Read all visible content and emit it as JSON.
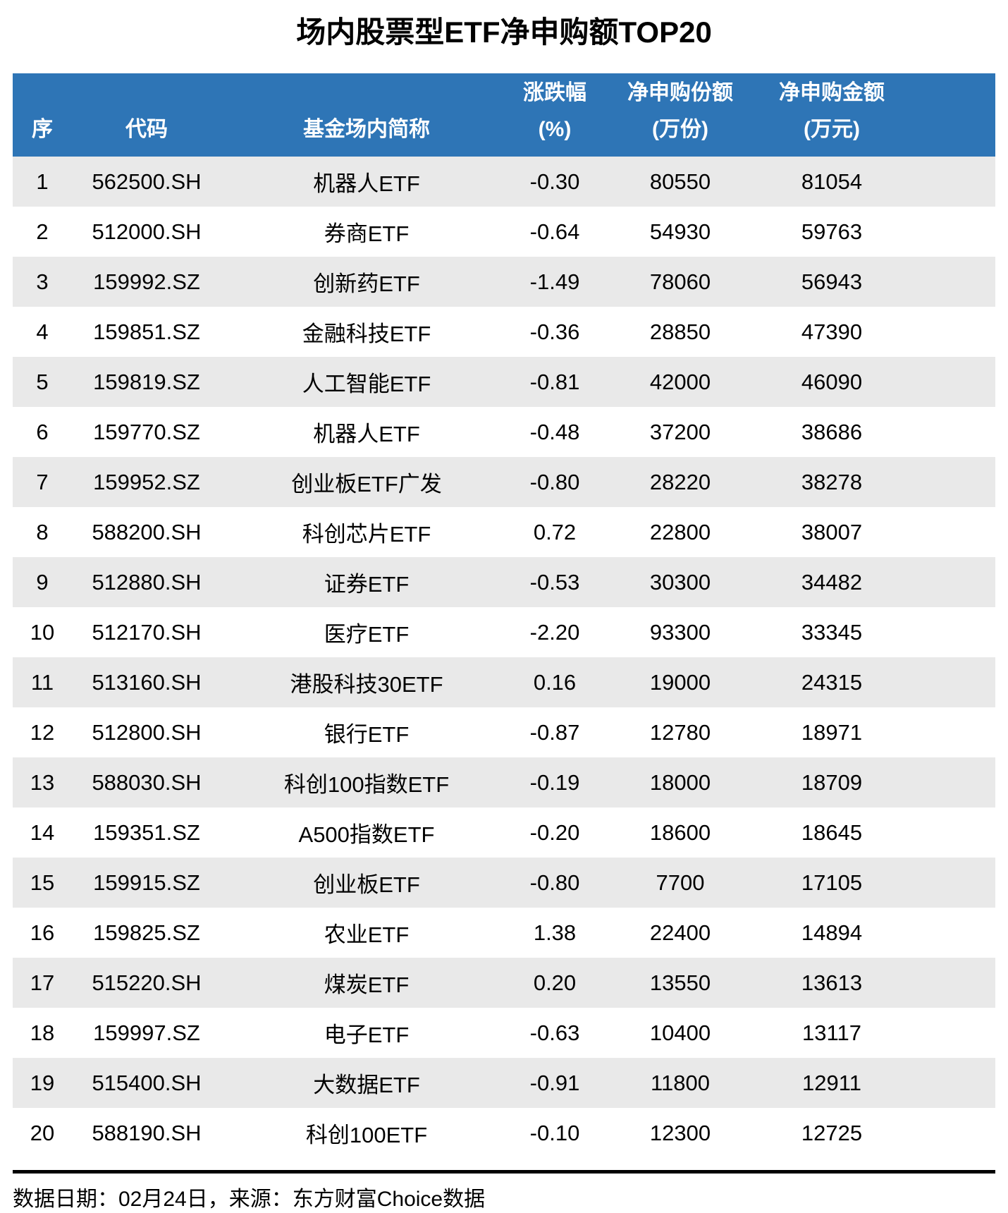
{
  "title": "场内股票型ETF净申购额TOP20",
  "colors": {
    "header_bg": "#2e75b6",
    "header_text": "#ffffff",
    "stripe_bg": "#e9e9e9"
  },
  "table": {
    "columns": [
      {
        "label": "序",
        "sub": ""
      },
      {
        "label": "代码",
        "sub": ""
      },
      {
        "label": "基金场内简称",
        "sub": ""
      },
      {
        "label": "涨跌幅",
        "sub": "(%)"
      },
      {
        "label": "净申购份额",
        "sub": "(万份)"
      },
      {
        "label": "净申购金额",
        "sub": "(万元)"
      }
    ],
    "rows": [
      {
        "rank": "1",
        "code": "562500.SH",
        "name": "机器人ETF",
        "change_pct": "-0.30",
        "net_shares_wan": "80550",
        "net_amount_wan": "81054"
      },
      {
        "rank": "2",
        "code": "512000.SH",
        "name": "券商ETF",
        "change_pct": "-0.64",
        "net_shares_wan": "54930",
        "net_amount_wan": "59763"
      },
      {
        "rank": "3",
        "code": "159992.SZ",
        "name": "创新药ETF",
        "change_pct": "-1.49",
        "net_shares_wan": "78060",
        "net_amount_wan": "56943"
      },
      {
        "rank": "4",
        "code": "159851.SZ",
        "name": "金融科技ETF",
        "change_pct": "-0.36",
        "net_shares_wan": "28850",
        "net_amount_wan": "47390"
      },
      {
        "rank": "5",
        "code": "159819.SZ",
        "name": "人工智能ETF",
        "change_pct": "-0.81",
        "net_shares_wan": "42000",
        "net_amount_wan": "46090"
      },
      {
        "rank": "6",
        "code": "159770.SZ",
        "name": "机器人ETF",
        "change_pct": "-0.48",
        "net_shares_wan": "37200",
        "net_amount_wan": "38686"
      },
      {
        "rank": "7",
        "code": "159952.SZ",
        "name": "创业板ETF广发",
        "change_pct": "-0.80",
        "net_shares_wan": "28220",
        "net_amount_wan": "38278"
      },
      {
        "rank": "8",
        "code": "588200.SH",
        "name": "科创芯片ETF",
        "change_pct": "0.72",
        "net_shares_wan": "22800",
        "net_amount_wan": "38007"
      },
      {
        "rank": "9",
        "code": "512880.SH",
        "name": "证券ETF",
        "change_pct": "-0.53",
        "net_shares_wan": "30300",
        "net_amount_wan": "34482"
      },
      {
        "rank": "10",
        "code": "512170.SH",
        "name": "医疗ETF",
        "change_pct": "-2.20",
        "net_shares_wan": "93300",
        "net_amount_wan": "33345"
      },
      {
        "rank": "11",
        "code": "513160.SH",
        "name": "港股科技30ETF",
        "change_pct": "0.16",
        "net_shares_wan": "19000",
        "net_amount_wan": "24315"
      },
      {
        "rank": "12",
        "code": "512800.SH",
        "name": "银行ETF",
        "change_pct": "-0.87",
        "net_shares_wan": "12780",
        "net_amount_wan": "18971"
      },
      {
        "rank": "13",
        "code": "588030.SH",
        "name": "科创100指数ETF",
        "change_pct": "-0.19",
        "net_shares_wan": "18000",
        "net_amount_wan": "18709"
      },
      {
        "rank": "14",
        "code": "159351.SZ",
        "name": "A500指数ETF",
        "change_pct": "-0.20",
        "net_shares_wan": "18600",
        "net_amount_wan": "18645"
      },
      {
        "rank": "15",
        "code": "159915.SZ",
        "name": "创业板ETF",
        "change_pct": "-0.80",
        "net_shares_wan": "7700",
        "net_amount_wan": "17105"
      },
      {
        "rank": "16",
        "code": "159825.SZ",
        "name": "农业ETF",
        "change_pct": "1.38",
        "net_shares_wan": "22400",
        "net_amount_wan": "14894"
      },
      {
        "rank": "17",
        "code": "515220.SH",
        "name": "煤炭ETF",
        "change_pct": "0.20",
        "net_shares_wan": "13550",
        "net_amount_wan": "13613"
      },
      {
        "rank": "18",
        "code": "159997.SZ",
        "name": "电子ETF",
        "change_pct": "-0.63",
        "net_shares_wan": "10400",
        "net_amount_wan": "13117"
      },
      {
        "rank": "19",
        "code": "515400.SH",
        "name": "大数据ETF",
        "change_pct": "-0.91",
        "net_shares_wan": "11800",
        "net_amount_wan": "12911"
      },
      {
        "rank": "20",
        "code": "588190.SH",
        "name": "科创100ETF",
        "change_pct": "-0.10",
        "net_shares_wan": "12300",
        "net_amount_wan": "12725"
      }
    ]
  },
  "footer": {
    "note": "数据日期：02月24日，来源：东方财富Choice数据"
  }
}
